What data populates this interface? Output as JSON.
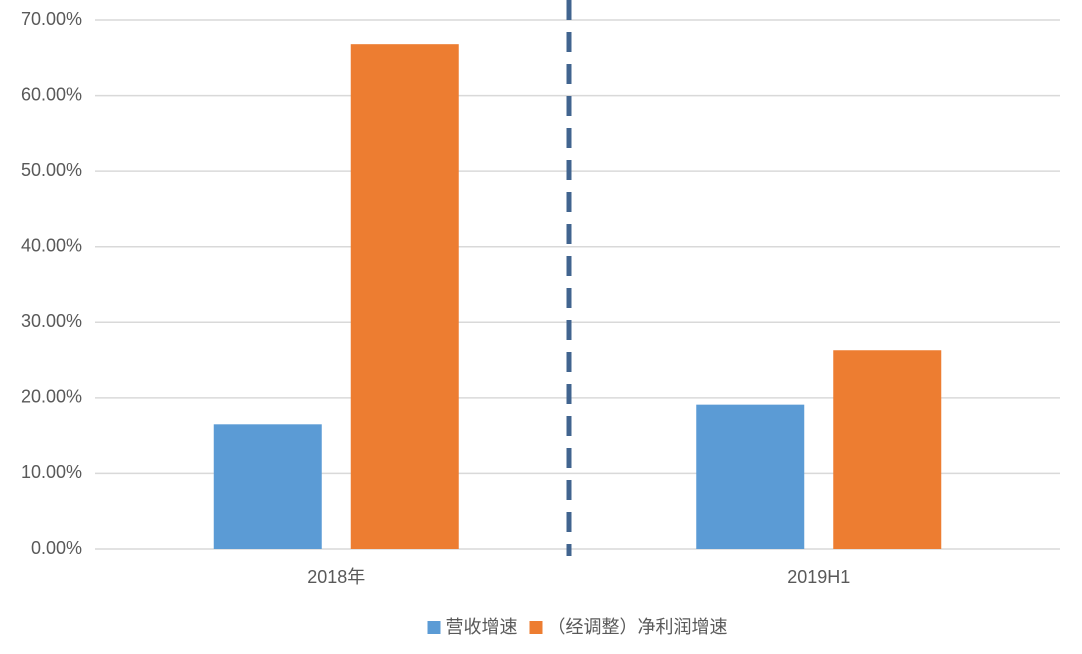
{
  "chart_data": {
    "type": "bar",
    "categories": [
      "2018年",
      "2019H1"
    ],
    "series": [
      {
        "name": "营收增速",
        "color": "#5b9bd5",
        "values": [
          16.5,
          19.1
        ]
      },
      {
        "name": "（经调整）净利润增速",
        "color": "#ed7d31",
        "values": [
          66.8,
          26.3
        ]
      }
    ],
    "ylim": [
      0,
      70
    ],
    "yticks": [
      {
        "value": 0,
        "label": "0.00%"
      },
      {
        "value": 10,
        "label": "10.00%"
      },
      {
        "value": 20,
        "label": "20.00%"
      },
      {
        "value": 30,
        "label": "30.00%"
      },
      {
        "value": 40,
        "label": "40.00%"
      },
      {
        "value": 50,
        "label": "50.00%"
      },
      {
        "value": 60,
        "label": "60.00%"
      },
      {
        "value": 70,
        "label": "70.00%"
      }
    ],
    "grid": true,
    "legend": "bottom"
  }
}
